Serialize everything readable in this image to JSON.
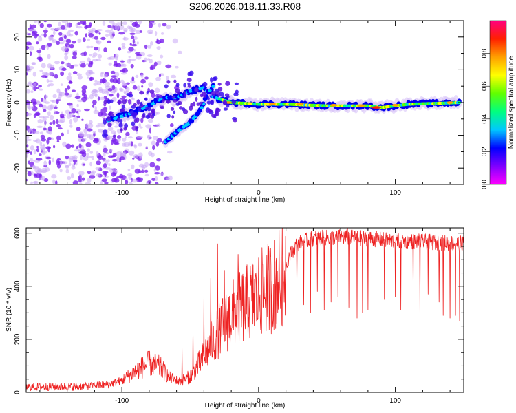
{
  "page": {
    "title": "S206.2026.018.11.33.R08"
  },
  "colors": {
    "snr_line": "#ee2222",
    "spectrogram_base": "#7a22ee",
    "ridge_core": "#22dd88",
    "frame": "#000000"
  },
  "chart_data": [
    {
      "type": "heatmap",
      "title": "S206.2026.018.11.33.R08",
      "xlabel": "Height of straight line (km)",
      "ylabel": "Frequency (Hz)",
      "xlim": [
        -170,
        150
      ],
      "ylim": [
        -25,
        25
      ],
      "x_ticks": [
        {
          "value": -100,
          "label": "-100"
        },
        {
          "value": 0,
          "label": "0"
        },
        {
          "value": 100,
          "label": "100"
        }
      ],
      "y_ticks": [
        {
          "value": 20,
          "label": "20"
        },
        {
          "value": 10,
          "label": "10"
        },
        {
          "value": 0,
          "label": "0"
        },
        {
          "value": -10,
          "label": "-10"
        },
        {
          "value": -20,
          "label": "-20"
        }
      ],
      "colorbar": {
        "label": "Normalized spectral amplitude",
        "range": [
          0,
          1
        ],
        "ticks": [
          {
            "value": 0.0,
            "label": "0.0"
          },
          {
            "value": 0.2,
            "label": "0.2"
          },
          {
            "value": 0.4,
            "label": "0.4"
          },
          {
            "value": 0.6,
            "label": "0.6"
          },
          {
            "value": 0.8,
            "label": "0.8"
          }
        ],
        "stops": [
          "#ff00ff",
          "#8000ff",
          "#0000ff",
          "#00c8ff",
          "#00ff80",
          "#60ff00",
          "#ffff00",
          "#ffa000",
          "#ff2000",
          "#ff0080"
        ]
      },
      "ridge": [
        {
          "x": -110,
          "y": -5.5
        },
        {
          "x": -95,
          "y": -3.5
        },
        {
          "x": -80,
          "y": -1
        },
        {
          "x": -70,
          "y": 1.5
        },
        {
          "x": -60,
          "y": 1.5
        },
        {
          "x": -50,
          "y": 3.5
        },
        {
          "x": -40,
          "y": 4.5
        },
        {
          "x": -35,
          "y": 2
        },
        {
          "x": -28,
          "y": 1
        },
        {
          "x": -20,
          "y": 0
        },
        {
          "x": 0,
          "y": -0.5
        },
        {
          "x": 20,
          "y": -0.5
        },
        {
          "x": 50,
          "y": -1
        },
        {
          "x": 80,
          "y": -1
        },
        {
          "x": 90,
          "y": -1.5
        },
        {
          "x": 110,
          "y": -0.5
        },
        {
          "x": 148,
          "y": 0
        }
      ],
      "branch": [
        {
          "x": -68,
          "y": -12
        },
        {
          "x": -60,
          "y": -9
        },
        {
          "x": -50,
          "y": -6
        },
        {
          "x": -42,
          "y": -2
        },
        {
          "x": -37,
          "y": 3
        },
        {
          "x": -33,
          "y": 5
        }
      ]
    },
    {
      "type": "line",
      "xlabel": "Height of straight line (km)",
      "ylabel": "SNR (10 * v/v)",
      "xlim": [
        -170,
        150
      ],
      "ylim": [
        0,
        620
      ],
      "x_ticks": [
        {
          "value": -100,
          "label": "-100"
        },
        {
          "value": 0,
          "label": "0"
        },
        {
          "value": 100,
          "label": "100"
        }
      ],
      "y_ticks": [
        {
          "value": 0,
          "label": "0"
        },
        {
          "value": 200,
          "label": "200"
        },
        {
          "value": 400,
          "label": "400"
        },
        {
          "value": 600,
          "label": "600"
        }
      ],
      "series": [
        {
          "name": "SNR",
          "envelope": [
            {
              "x": -170,
              "y": 20
            },
            {
              "x": -130,
              "y": 22
            },
            {
              "x": -110,
              "y": 30
            },
            {
              "x": -100,
              "y": 45
            },
            {
              "x": -90,
              "y": 80
            },
            {
              "x": -80,
              "y": 110
            },
            {
              "x": -72,
              "y": 95
            },
            {
              "x": -65,
              "y": 55
            },
            {
              "x": -58,
              "y": 40
            },
            {
              "x": -50,
              "y": 60
            },
            {
              "x": -42,
              "y": 120
            },
            {
              "x": -35,
              "y": 180
            },
            {
              "x": -28,
              "y": 240
            },
            {
              "x": -20,
              "y": 290
            },
            {
              "x": -12,
              "y": 320
            },
            {
              "x": -5,
              "y": 350
            },
            {
              "x": 5,
              "y": 385
            },
            {
              "x": 12,
              "y": 410
            },
            {
              "x": 18,
              "y": 450
            },
            {
              "x": 22,
              "y": 510
            },
            {
              "x": 28,
              "y": 560
            },
            {
              "x": 40,
              "y": 580
            },
            {
              "x": 60,
              "y": 585
            },
            {
              "x": 80,
              "y": 580
            },
            {
              "x": 100,
              "y": 570
            },
            {
              "x": 120,
              "y": 568
            },
            {
              "x": 150,
              "y": 560
            }
          ],
          "spikes": [
            {
              "x": -56,
              "y": 170
            },
            {
              "x": -48,
              "y": 250
            },
            {
              "x": -40,
              "y": 360
            },
            {
              "x": -35,
              "y": 430
            },
            {
              "x": -30,
              "y": 560
            },
            {
              "x": -25,
              "y": 460
            },
            {
              "x": -15,
              "y": 520
            },
            {
              "x": 65,
              "y": 620
            }
          ],
          "dropouts": [
            {
              "x": 28,
              "y": 400
            },
            {
              "x": 33,
              "y": 330
            },
            {
              "x": 38,
              "y": 300
            },
            {
              "x": 43,
              "y": 380
            },
            {
              "x": 48,
              "y": 310
            },
            {
              "x": 53,
              "y": 340
            },
            {
              "x": 58,
              "y": 360
            },
            {
              "x": 66,
              "y": 320
            },
            {
              "x": 72,
              "y": 280
            },
            {
              "x": 76,
              "y": 300
            },
            {
              "x": 80,
              "y": 310
            },
            {
              "x": 92,
              "y": 350
            },
            {
              "x": 100,
              "y": 360
            },
            {
              "x": 104,
              "y": 310
            },
            {
              "x": 113,
              "y": 380
            },
            {
              "x": 118,
              "y": 300
            },
            {
              "x": 124,
              "y": 370
            },
            {
              "x": 132,
              "y": 340
            },
            {
              "x": 135,
              "y": 290
            },
            {
              "x": 140,
              "y": 280
            },
            {
              "x": 144,
              "y": 290
            },
            {
              "x": 147,
              "y": 270
            }
          ]
        }
      ]
    }
  ]
}
